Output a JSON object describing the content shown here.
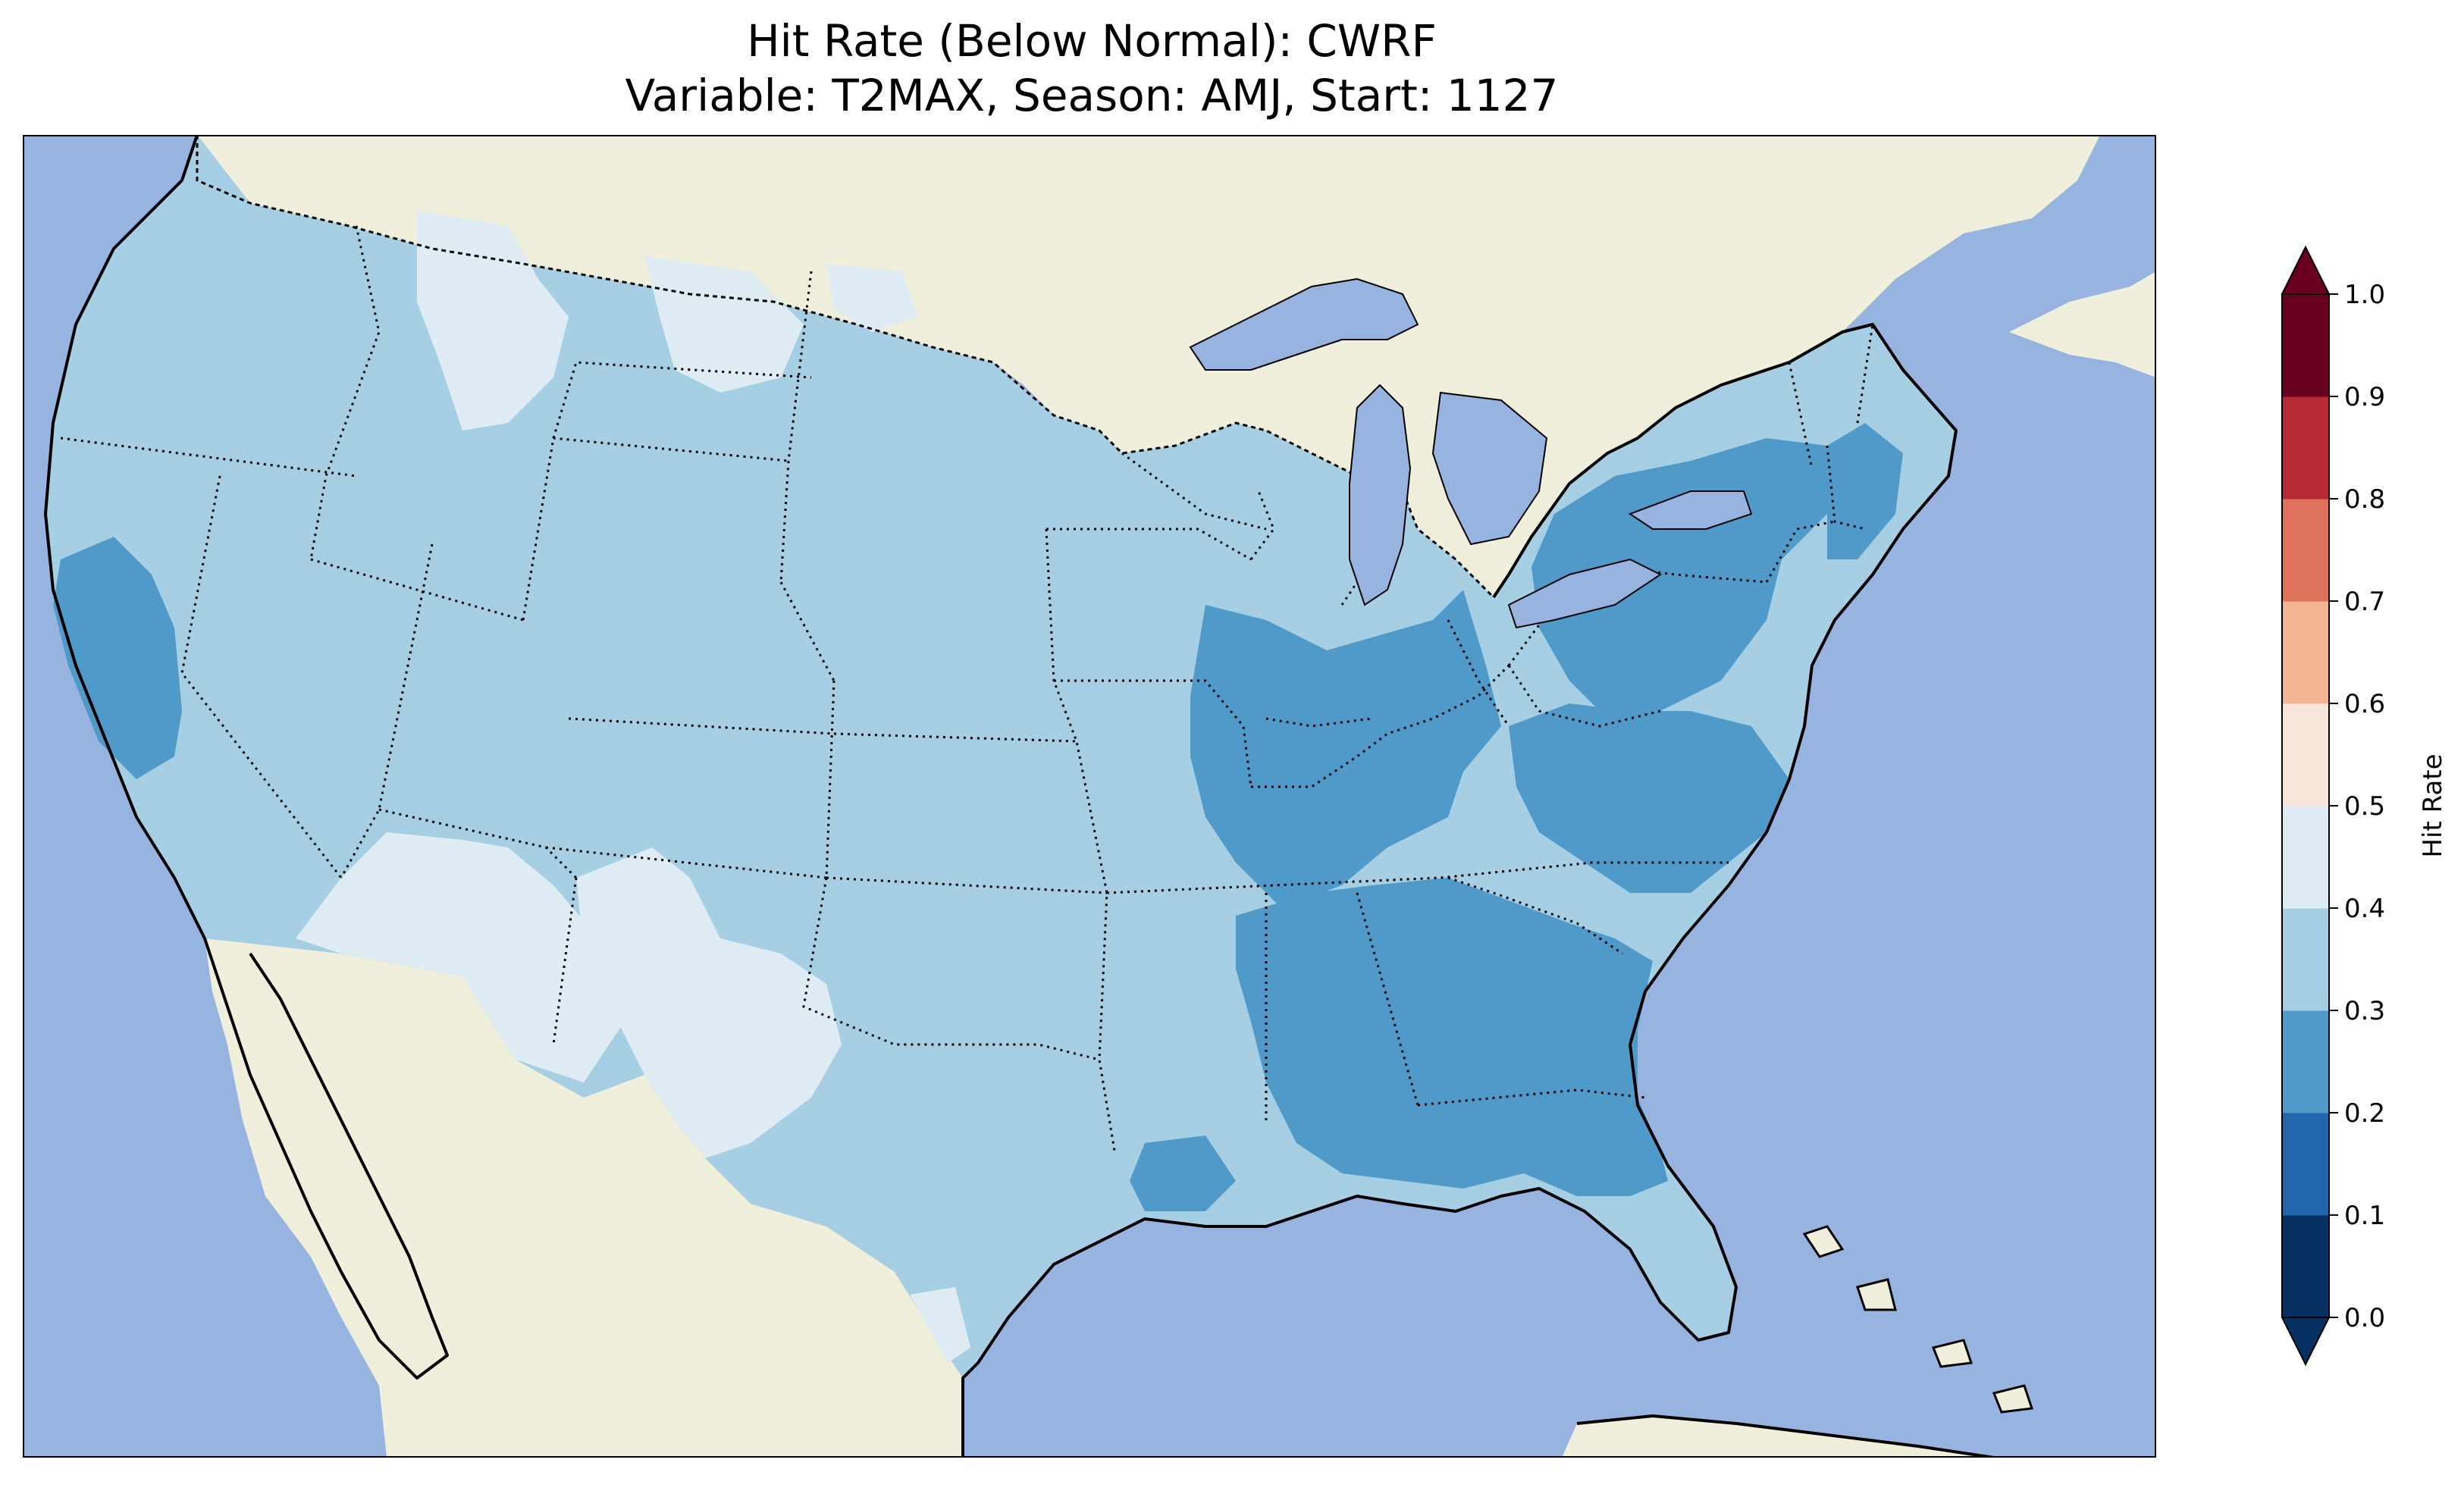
{
  "title": {
    "line1": "Hit Rate (Below Normal): CWRF",
    "line2": "Variable: T2MAX, Season: AMJ, Start: 1127"
  },
  "colors": {
    "ocean": "#97b4e0",
    "land": "#f0efdc",
    "border": "#000000"
  },
  "colorbar": {
    "label": "Hit Rate",
    "ticks": [
      "0.0",
      "0.1",
      "0.2",
      "0.3",
      "0.4",
      "0.5",
      "0.6",
      "0.7",
      "0.8",
      "0.9",
      "1.0"
    ],
    "bins": [
      {
        "range": [
          0.0,
          0.1
        ],
        "color": "#053061"
      },
      {
        "range": [
          0.1,
          0.2
        ],
        "color": "#2166ac"
      },
      {
        "range": [
          0.2,
          0.3
        ],
        "color": "#4f9ac9"
      },
      {
        "range": [
          0.3,
          0.4
        ],
        "color": "#a7cfe4"
      },
      {
        "range": [
          0.4,
          0.5
        ],
        "color": "#e0ecf4"
      },
      {
        "range": [
          0.5,
          0.6
        ],
        "color": "#f8e6dc"
      },
      {
        "range": [
          0.6,
          0.7
        ],
        "color": "#f4b597"
      },
      {
        "range": [
          0.7,
          0.8
        ],
        "color": "#de725b"
      },
      {
        "range": [
          0.8,
          0.9
        ],
        "color": "#b72a33"
      },
      {
        "range": [
          0.9,
          1.0
        ],
        "color": "#6a0020"
      }
    ],
    "extend": "both"
  },
  "map_fields": [
    {
      "region": "western-and-central-us",
      "range": [
        0.3,
        0.4
      ]
    },
    {
      "region": "northern-rockies",
      "range": [
        0.4,
        0.5
      ]
    },
    {
      "region": "southwest-desert",
      "range": [
        0.4,
        0.5
      ]
    },
    {
      "region": "west-texas",
      "range": [
        0.4,
        0.5
      ]
    },
    {
      "region": "central-california",
      "range": [
        0.2,
        0.3
      ]
    },
    {
      "region": "ohio-valley",
      "range": [
        0.2,
        0.3
      ]
    },
    {
      "region": "southeast",
      "range": [
        0.2,
        0.3
      ]
    },
    {
      "region": "mid-atlantic",
      "range": [
        0.2,
        0.3
      ]
    },
    {
      "region": "pennsylvania-new-york",
      "range": [
        0.2,
        0.3
      ]
    },
    {
      "region": "southern-new-england",
      "range": [
        0.2,
        0.3
      ]
    },
    {
      "region": "florida-peninsula",
      "range": [
        0.3,
        0.4
      ]
    }
  ]
}
